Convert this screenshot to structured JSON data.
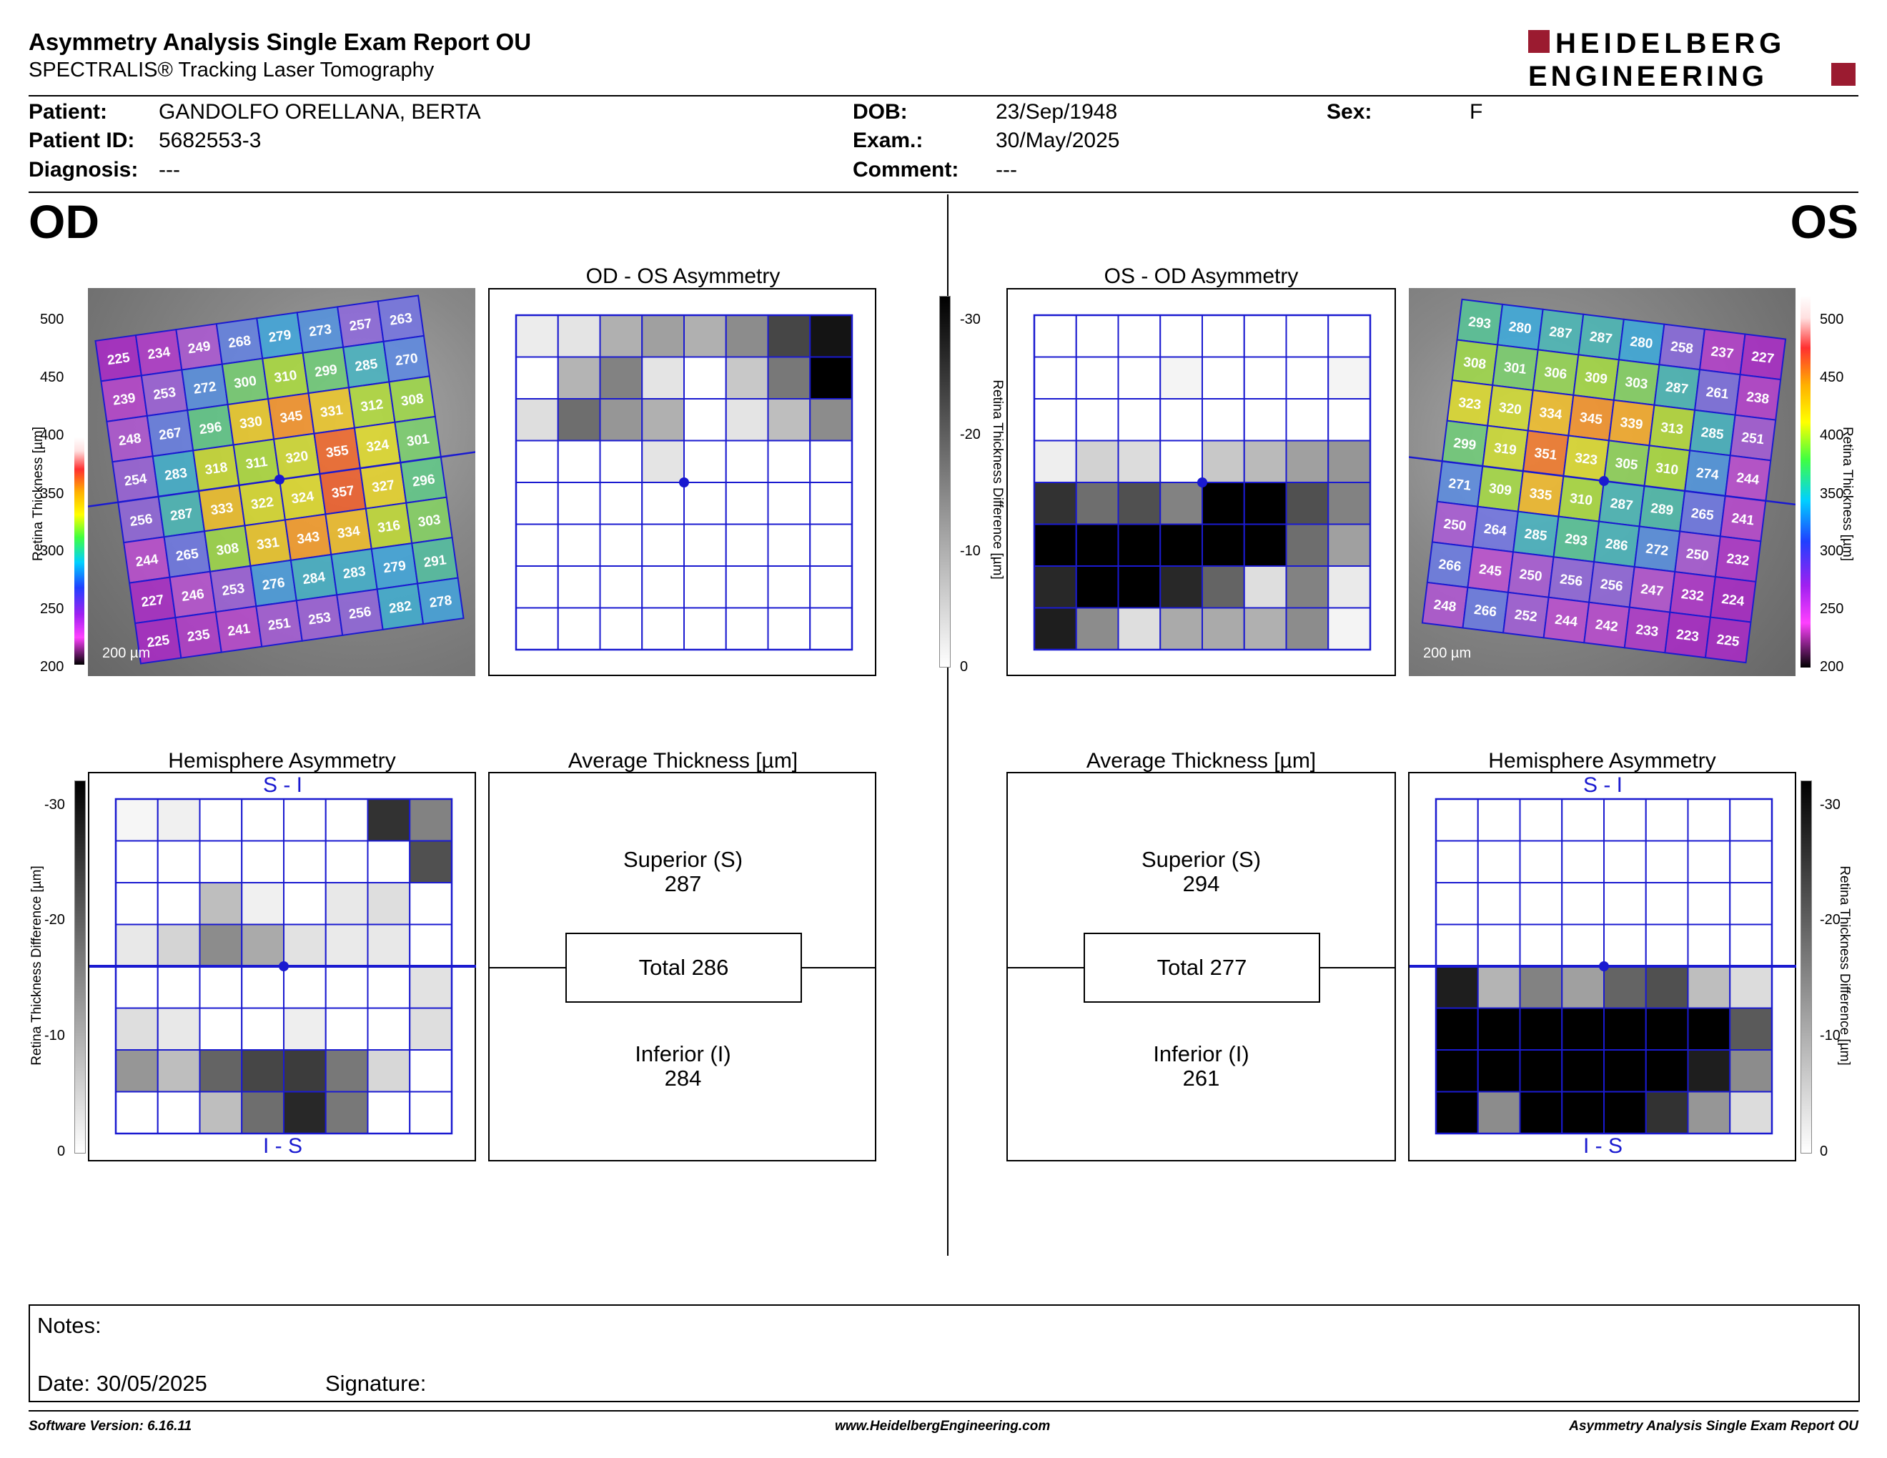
{
  "header": {
    "title": "Asymmetry Analysis Single Exam Report OU",
    "subtitle": "SPECTRALIS® Tracking Laser Tomography",
    "logo_line1": "HEIDELBERG",
    "logo_line2": "ENGINEERING"
  },
  "patient": {
    "patient_label": "Patient:",
    "patient_value": "GANDOLFO ORELLANA, BERTA",
    "id_label": "Patient ID:",
    "id_value": "5682553-3",
    "diagnosis_label": "Diagnosis:",
    "diagnosis_value": "---",
    "dob_label": "DOB:",
    "dob_value": "23/Sep/1948",
    "exam_label": "Exam.:",
    "exam_value": "30/May/2025",
    "comment_label": "Comment:",
    "comment_value": "---",
    "sex_label": "Sex:",
    "sex_value": "F"
  },
  "od": {
    "label": "OD",
    "thickness_map": {
      "scale_bar": "200 µm",
      "axis_label": "Retina Thickness [µm]",
      "ticks": [
        "500",
        "450",
        "400",
        "350",
        "300",
        "250",
        "200"
      ],
      "values": [
        [
          "225",
          "234",
          "249",
          "268",
          "279",
          "273",
          "257",
          "263"
        ],
        [
          "239",
          "253",
          "272",
          "300",
          "310",
          "299",
          "285",
          "270"
        ],
        [
          "248",
          "267",
          "296",
          "330",
          "345",
          "331",
          "312",
          "308"
        ],
        [
          "254",
          "283",
          "318",
          "311",
          "320",
          "355",
          "324",
          "301"
        ],
        [
          "256",
          "287",
          "333",
          "322",
          "324",
          "357",
          "327",
          "296"
        ],
        [
          "244",
          "265",
          "308",
          "331",
          "343",
          "334",
          "316",
          "303"
        ],
        [
          "227",
          "246",
          "253",
          "276",
          "284",
          "283",
          "279",
          "291"
        ],
        [
          "225",
          "235",
          "241",
          "251",
          "253",
          "256",
          "282",
          "278"
        ]
      ]
    },
    "asymmetry": {
      "title": "OD - OS Asymmetry",
      "shades": [
        [
          236,
          228,
          176,
          160,
          176,
          140,
          70,
          20
        ],
        [
          255,
          180,
          130,
          228,
          255,
          200,
          120,
          0
        ],
        [
          222,
          110,
          150,
          176,
          255,
          228,
          190,
          140
        ],
        [
          255,
          255,
          255,
          228,
          255,
          255,
          255,
          255
        ],
        [
          255,
          255,
          255,
          255,
          255,
          255,
          255,
          255
        ],
        [
          255,
          255,
          255,
          255,
          255,
          255,
          255,
          255
        ],
        [
          255,
          255,
          255,
          255,
          255,
          255,
          255,
          255
        ],
        [
          255,
          255,
          255,
          255,
          255,
          255,
          255,
          255
        ]
      ]
    },
    "hemisphere": {
      "title": "Hemisphere Asymmetry",
      "top_label": "S - I",
      "bottom_label": "I - S",
      "axis_label": "Retina Thickness Difference [µm]",
      "ticks": [
        "-30",
        "-20",
        "-10",
        "0"
      ],
      "shades": [
        [
          246,
          240,
          255,
          255,
          255,
          255,
          50,
          130
        ],
        [
          255,
          255,
          255,
          255,
          255,
          255,
          255,
          80
        ],
        [
          255,
          255,
          190,
          240,
          255,
          232,
          222,
          255
        ],
        [
          232,
          212,
          140,
          170,
          226,
          234,
          232,
          255
        ],
        [
          255,
          255,
          255,
          255,
          255,
          255,
          255,
          226
        ],
        [
          222,
          232,
          255,
          255,
          238,
          255,
          255,
          222
        ],
        [
          150,
          190,
          100,
          70,
          60,
          120,
          215,
          255
        ],
        [
          255,
          255,
          190,
          110,
          40,
          120,
          255,
          255
        ]
      ]
    },
    "average": {
      "title": "Average Thickness [µm]",
      "superior_label": "Superior (S)",
      "superior_value": "287",
      "total": "Total 286",
      "inferior_label": "Inferior (I)",
      "inferior_value": "284"
    }
  },
  "os": {
    "label": "OS",
    "thickness_map": {
      "scale_bar": "200 µm",
      "axis_label": "Retina Thickness [µm]",
      "ticks": [
        "500",
        "450",
        "400",
        "350",
        "300",
        "250",
        "200"
      ],
      "values": [
        [
          "293",
          "280",
          "287",
          "287",
          "280",
          "258",
          "237",
          "227"
        ],
        [
          "308",
          "301",
          "306",
          "309",
          "303",
          "287",
          "261",
          "238"
        ],
        [
          "323",
          "320",
          "334",
          "345",
          "339",
          "313",
          "285",
          "251"
        ],
        [
          "299",
          "319",
          "351",
          "323",
          "305",
          "310",
          "274",
          "244"
        ],
        [
          "271",
          "309",
          "335",
          "310",
          "287",
          "289",
          "265",
          "241"
        ],
        [
          "250",
          "264",
          "285",
          "293",
          "286",
          "272",
          "250",
          "232"
        ],
        [
          "266",
          "245",
          "250",
          "256",
          "256",
          "247",
          "232",
          "224"
        ],
        [
          "248",
          "266",
          "252",
          "244",
          "242",
          "233",
          "223",
          "225"
        ]
      ]
    },
    "asymmetry": {
      "title": "OS - OD Asymmetry",
      "axis_label": "Retina Thickness Difference [µm]",
      "ticks": [
        "-30",
        "-20",
        "-10",
        "0"
      ],
      "shades": [
        [
          255,
          255,
          255,
          255,
          255,
          255,
          255,
          255
        ],
        [
          255,
          255,
          255,
          244,
          255,
          255,
          255,
          244
        ],
        [
          255,
          255,
          255,
          255,
          255,
          255,
          255,
          255
        ],
        [
          238,
          210,
          220,
          255,
          200,
          186,
          160,
          150
        ],
        [
          50,
          110,
          80,
          130,
          0,
          0,
          80,
          130
        ],
        [
          0,
          0,
          0,
          0,
          0,
          0,
          110,
          160
        ],
        [
          40,
          0,
          0,
          40,
          100,
          222,
          130,
          234
        ],
        [
          30,
          140,
          222,
          170,
          170,
          176,
          140,
          244
        ]
      ]
    },
    "hemisphere": {
      "title": "Hemisphere Asymmetry",
      "top_label": "S - I",
      "bottom_label": "I - S",
      "axis_label": "Retina Thickness Difference [µm]",
      "ticks": [
        "-30",
        "-20",
        "-10",
        "0"
      ],
      "shades": [
        [
          255,
          255,
          255,
          255,
          255,
          255,
          255,
          255
        ],
        [
          255,
          255,
          255,
          255,
          255,
          255,
          255,
          255
        ],
        [
          255,
          255,
          255,
          255,
          255,
          255,
          255,
          255
        ],
        [
          255,
          255,
          255,
          255,
          255,
          255,
          255,
          255
        ],
        [
          30,
          180,
          130,
          160,
          100,
          80,
          190,
          220
        ],
        [
          0,
          0,
          0,
          0,
          0,
          0,
          0,
          90
        ],
        [
          0,
          0,
          0,
          0,
          0,
          0,
          30,
          140
        ],
        [
          0,
          140,
          0,
          0,
          0,
          50,
          150,
          220
        ]
      ]
    },
    "average": {
      "title": "Average Thickness [µm]",
      "superior_label": "Superior (S)",
      "superior_value": "294",
      "total": "Total 277",
      "inferior_label": "Inferior (I)",
      "inferior_value": "261"
    }
  },
  "notes": {
    "notes_label": "Notes:",
    "date_label": "Date: 30/05/2025",
    "signature_label": "Signature:"
  },
  "footer": {
    "software": "Software Version: 6.16.11",
    "website": "www.HeidelbergEngineering.com",
    "report_name": "Asymmetry Analysis Single Exam Report OU"
  },
  "colors": {
    "grid_blue": "#1a1ad0",
    "logo_red": "#9b1b30"
  }
}
